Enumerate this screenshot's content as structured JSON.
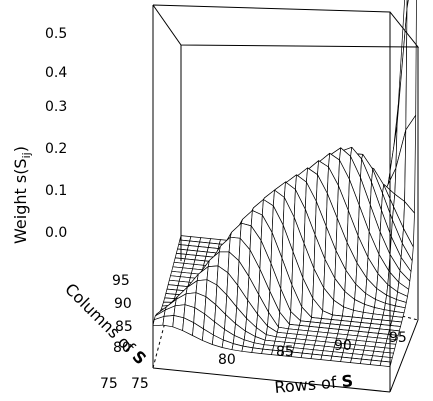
{
  "chart_data": {
    "type": "surface3d",
    "title": "",
    "xlabel": "Rows of S",
    "ylabel": "Columns of S",
    "zlabel": "Weight s(S_ij)",
    "zlabel_text": {
      "prefix": "Weight s(S",
      "sub": "ij",
      "suffix": ")"
    },
    "xlabel_text": {
      "prefix": "Rows of ",
      "bold": "S"
    },
    "ylabel_text": {
      "prefix": "Columns of ",
      "bold": "S"
    },
    "x_ticks": [
      "75",
      "80",
      "85",
      "90",
      "95"
    ],
    "y_ticks": [
      "75",
      "80",
      "85",
      "90",
      "95"
    ],
    "z_ticks": [
      "0.0",
      "0.1",
      "0.2",
      "0.3",
      "0.4",
      "0.5"
    ],
    "xlim": [
      74,
      98
    ],
    "ylim": [
      74,
      98
    ],
    "zlim": [
      0,
      0.5
    ],
    "grid_steps": 24,
    "surface": {
      "description": "Ridge rising along the diagonal of S toward the (98,98) corner, with a sharp spike at the corner",
      "peak_value": 0.52,
      "peak_at": [
        98,
        98
      ]
    }
  }
}
